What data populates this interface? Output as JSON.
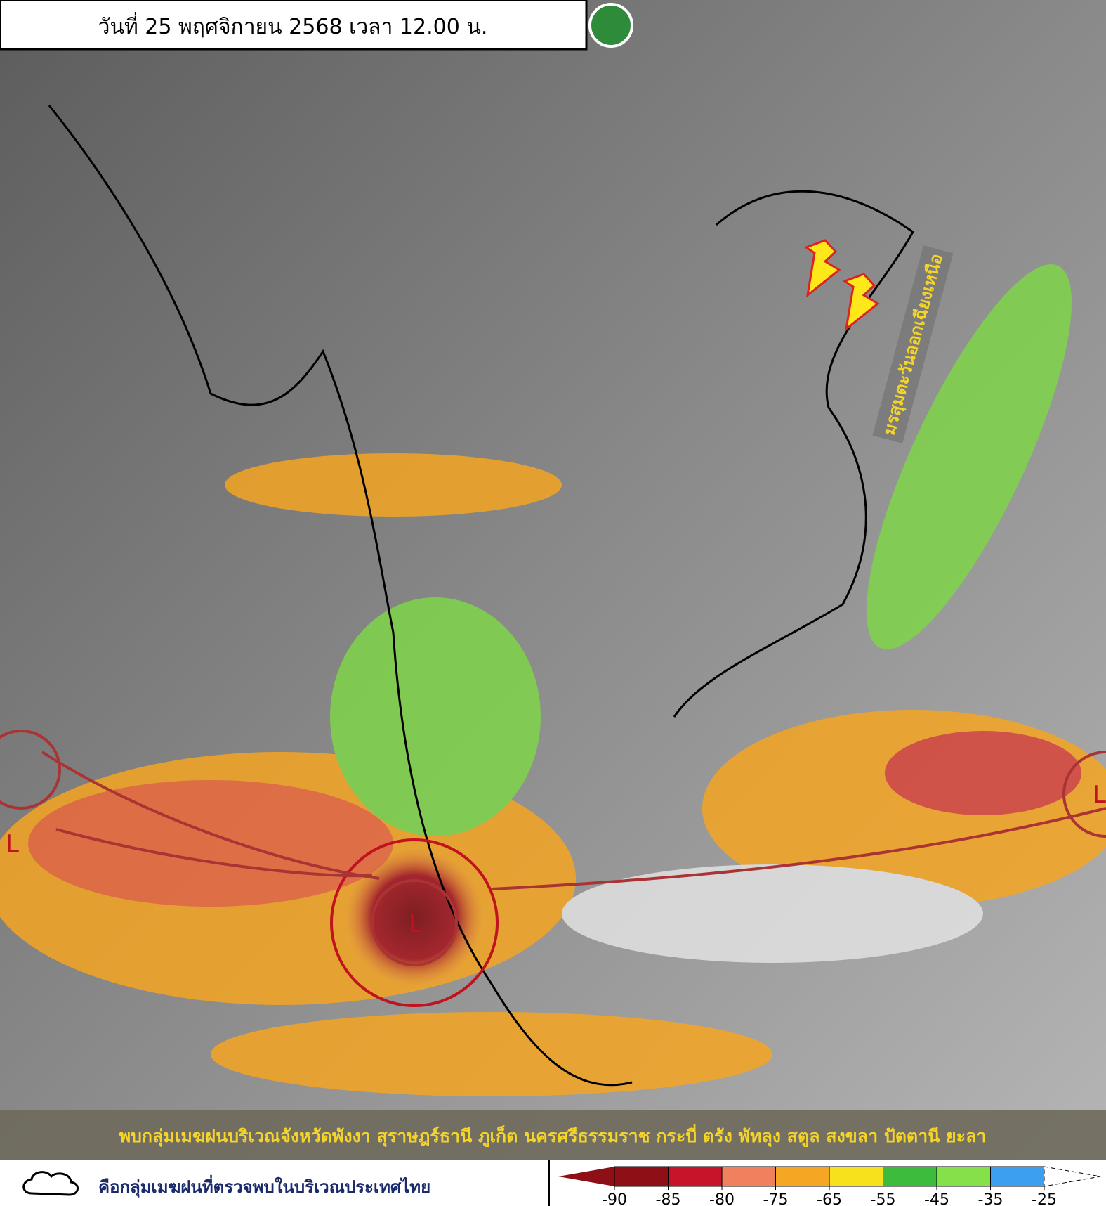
{
  "header": {
    "title": "วันที่ 25 พฤศจิกายน 2568 เวลา 12.00 น."
  },
  "annotations": {
    "monsoon": "มรสุมตะวันออกเฉียงเหนือ",
    "lows": [
      "L",
      "L",
      "L"
    ]
  },
  "caption": "พบกลุ่มเมฆฝนบริเวณจังหวัดพังงา สุราษฎร์ธานี ภูเก็ต นครศรีธรรมราช กระบี่ ตรัง พัทลุง สตูล สงขลา ปัตตานี ยะลา",
  "legend": {
    "cloud_note": "คือกลุ่มเมฆฝนที่ตรวจพบในบริเวณประเทศไทย"
  },
  "color_scale": {
    "ticks": [
      -90,
      -85,
      -80,
      -75,
      -65,
      -55,
      -45,
      -35,
      -25
    ],
    "colors": [
      "#8e1016",
      "#c8142a",
      "#f0805e",
      "#f5a623",
      "#f7e01c",
      "#3dbb3d",
      "#86e04a",
      "#3d9ff0"
    ]
  }
}
